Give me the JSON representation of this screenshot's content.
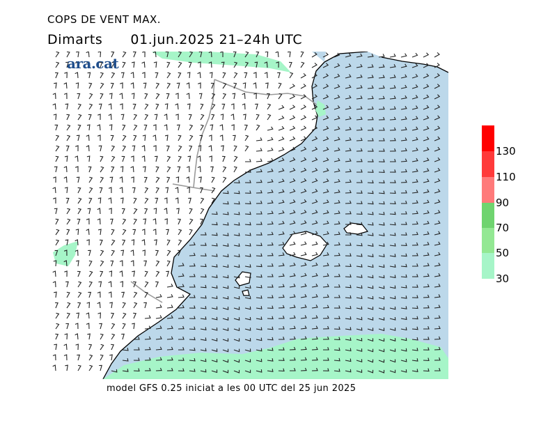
{
  "header": {
    "title": "COPS DE VENT MAX.",
    "day": "Dimarts",
    "date_time": "01.jun.2025 21–24h UTC"
  },
  "logo": {
    "text": "ara.cat"
  },
  "footer": {
    "text": "model GFS 0.25 iniciat a les 00 UTC del 25 jun 2025"
  },
  "legend": {
    "labels": [
      "130",
      "110",
      "90",
      "70",
      "50",
      "30"
    ],
    "colors": [
      "#ff0000",
      "#ff3a3a",
      "#ff7a7a",
      "#6fd46f",
      "#93e893",
      "#a6f5c8"
    ]
  },
  "map_colors": {
    "sea": "#bcd8ea",
    "land": "#ffffff",
    "wind_30_50": "#a6f5c8",
    "barbs": "#222222",
    "borders": "#999999"
  }
}
